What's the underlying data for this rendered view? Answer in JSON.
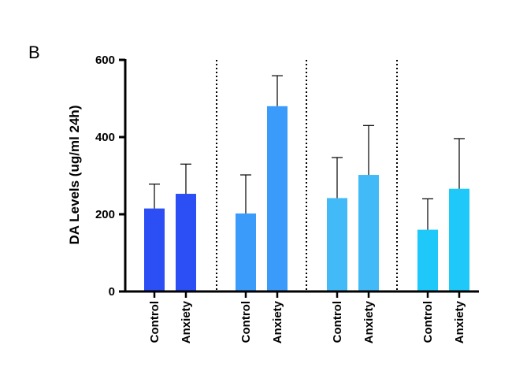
{
  "panel_label": "B",
  "colors": {
    "group1": "#2b4ef5",
    "group2": "#3a9bfb",
    "group3": "#43baf8",
    "group4": "#1ec9f9",
    "axis": "#000000"
  },
  "chart_data": {
    "type": "bar",
    "ylabel": "DA Levels (ug/ml 24h)",
    "xlabel": "",
    "ylim": [
      0,
      600
    ],
    "yticks": [
      0,
      200,
      400,
      600
    ],
    "categories": [
      "Control",
      "Anxiety",
      "Control",
      "Anxiety",
      "Control",
      "Anxiety",
      "Control",
      "Anxiety"
    ],
    "values": [
      215,
      253,
      202,
      480,
      242,
      302,
      160,
      266
    ],
    "errors": [
      63,
      77,
      100,
      79,
      105,
      128,
      80,
      130
    ],
    "groups": [
      1,
      1,
      2,
      2,
      3,
      3,
      4,
      4
    ],
    "group_separators": "dotted vertical lines",
    "grid": false,
    "legend": "none"
  }
}
